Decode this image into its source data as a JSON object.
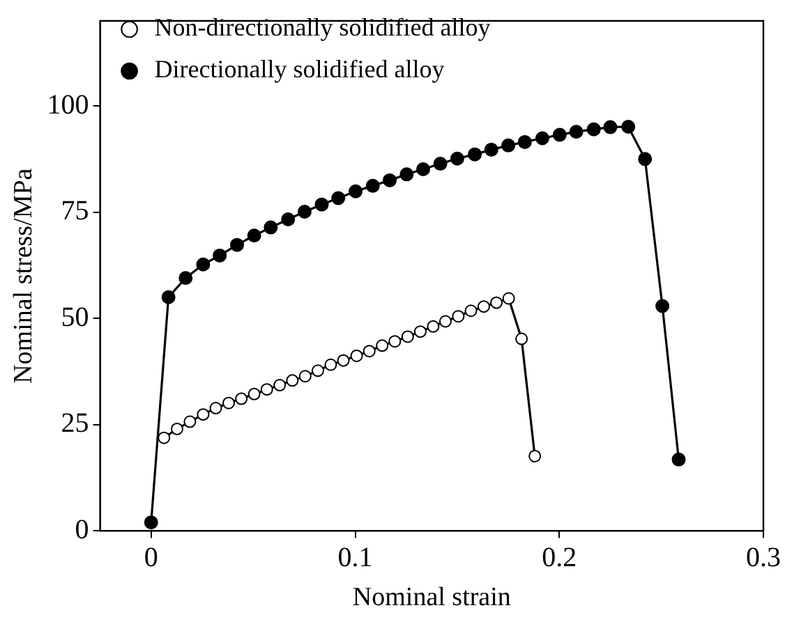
{
  "chart_data": {
    "type": "line",
    "xlabel": "Nominal strain",
    "ylabel": "Nominal stress/MPa",
    "xlim": [
      -0.025,
      0.3
    ],
    "xticks": [
      0,
      {
        "value": 0.1,
        "label": "0.1"
      },
      {
        "value": 0.2,
        "label": "0.2"
      },
      {
        "value": 0.3,
        "label": "0.3"
      }
    ],
    "ylim": [
      0,
      120
    ],
    "yticks": [
      0,
      25,
      50,
      75,
      100
    ],
    "grid": false,
    "legend": "top left",
    "marker": "circle",
    "line_style": "solid",
    "series": [
      {
        "name": "Non-directionally solidified alloy",
        "color": "#000000",
        "x": [
          0.0063,
          0.0127,
          0.019,
          0.0255,
          0.0317,
          0.038,
          0.0442,
          0.0505,
          0.0567,
          0.063,
          0.0692,
          0.0755,
          0.0817,
          0.088,
          0.0942,
          0.1007,
          0.1069,
          0.1132,
          0.1194,
          0.1257,
          0.1319,
          0.1382,
          0.1442,
          0.1505,
          0.1567,
          0.163,
          0.1692,
          0.1752,
          0.1815,
          0.188
        ],
        "values": [
          21.9,
          24.0,
          25.7,
          27.4,
          28.9,
          30.1,
          31.1,
          32.2,
          33.3,
          34.3,
          35.4,
          36.4,
          37.7,
          39.1,
          40.1,
          41.2,
          42.3,
          43.6,
          44.6,
          45.7,
          46.9,
          48.1,
          49.3,
          50.5,
          51.8,
          52.8,
          53.7,
          54.7,
          45.2,
          17.6
        ]
      },
      {
        "name": "Directionally solidified alloy",
        "color": "#000000",
        "x": [
          0,
          0.0085,
          0.0169,
          0.0255,
          0.0336,
          0.0421,
          0.0505,
          0.0586,
          0.0671,
          0.0752,
          0.0836,
          0.0917,
          0.1002,
          0.1086,
          0.1169,
          0.1252,
          0.1333,
          0.1417,
          0.15,
          0.1586,
          0.1667,
          0.175,
          0.1831,
          0.1917,
          0.2002,
          0.2083,
          0.2169,
          0.225,
          0.2338,
          0.242,
          0.2505,
          0.2585
        ],
        "values": [
          2,
          55,
          59.5,
          62.7,
          64.8,
          67.3,
          69.5,
          71.4,
          73.3,
          75.1,
          76.8,
          78.3,
          79.9,
          81.2,
          82.5,
          83.9,
          85.1,
          86.4,
          87.6,
          88.6,
          89.7,
          90.7,
          91.5,
          92.4,
          93.2,
          93.9,
          94.5,
          95.0,
          95.1,
          87.5,
          52.9,
          16.8
        ]
      }
    ]
  }
}
